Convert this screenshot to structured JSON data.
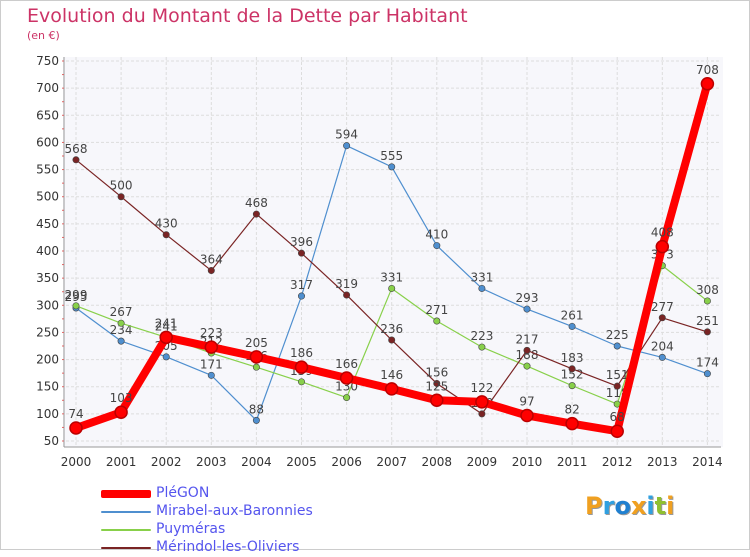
{
  "title": "Evolution du Montant de la Dette par Habitant",
  "subtitle": "(en €)",
  "logo": {
    "text": "Proxiti",
    "colors": [
      "#f0a020",
      "#30a0e0",
      "#2080d0",
      "#f0a020",
      "#30a0e0",
      "#90c030",
      "#f0a020"
    ]
  },
  "chart_data": {
    "type": "line",
    "x": [
      "2000",
      "2001",
      "2002",
      "2003",
      "2004",
      "2005",
      "2006",
      "2007",
      "2008",
      "2009",
      "2010",
      "2011",
      "2012",
      "2013",
      "2014"
    ],
    "ylim": [
      50,
      750
    ],
    "yticks": [
      "50",
      "100",
      "150",
      "200",
      "250",
      "300",
      "350",
      "400",
      "450",
      "500",
      "550",
      "600",
      "650",
      "700",
      "750"
    ],
    "grid": true,
    "legend_position": "bottom-left",
    "series": [
      {
        "name": "Mirabel-aux-Baronnies",
        "color": "#4f8fcf",
        "values": [
          295,
          234,
          205,
          171,
          88,
          317,
          594,
          555,
          410,
          331,
          293,
          261,
          225,
          204,
          174
        ],
        "labels": [
          "295",
          "234",
          "205",
          "171",
          "88",
          "317",
          "594",
          "555",
          "410",
          "331",
          "293",
          "261",
          "225",
          "204",
          "174"
        ]
      },
      {
        "name": "Puyméras",
        "color": "#88d04a",
        "values": [
          299,
          267,
          241,
          212,
          186,
          159,
          130,
          331,
          271,
          223,
          188,
          152,
          118,
          373,
          308
        ],
        "labels": [
          "299",
          "267",
          "241",
          "212",
          "186",
          "159",
          "130",
          "331",
          "271",
          "223",
          "188",
          "152",
          "118",
          "373",
          "308"
        ]
      },
      {
        "name": "Mérindol-les-Oliviers",
        "color": "#7a2424",
        "values": [
          568,
          500,
          430,
          364,
          468,
          396,
          319,
          236,
          156,
          100,
          217,
          183,
          151,
          277,
          251
        ],
        "labels": [
          "568",
          "500",
          "430",
          "364",
          "468",
          "396",
          "319",
          "236",
          "156",
          "100",
          "217",
          "183",
          "151",
          "277",
          "251"
        ]
      },
      {
        "name": "PléGON",
        "color": "#ff0000",
        "values": [
          74,
          103,
          241,
          223,
          205,
          186,
          166,
          146,
          125,
          122,
          97,
          82,
          68,
          408,
          708
        ],
        "labels": [
          "74",
          "103",
          "241",
          "223",
          "205",
          "186",
          "166",
          "146",
          "125",
          "122",
          "97",
          "82",
          "68",
          "408",
          "708"
        ]
      }
    ]
  }
}
